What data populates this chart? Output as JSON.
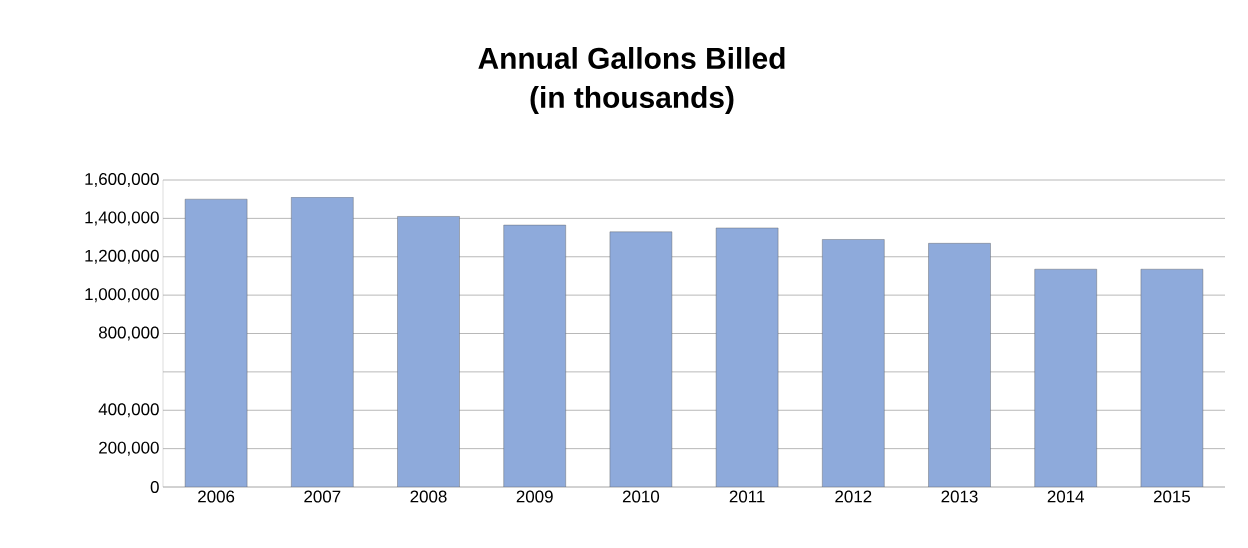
{
  "chart_data": {
    "type": "bar",
    "title": "Annual Gallons Billed",
    "subtitle": "(in thousands)",
    "categories": [
      "2006",
      "2007",
      "2008",
      "2009",
      "2010",
      "2011",
      "2012",
      "2013",
      "2014",
      "2015"
    ],
    "values": [
      1500000,
      1510000,
      1410000,
      1365000,
      1330000,
      1350000,
      1290000,
      1270000,
      1135000,
      1135000
    ],
    "color": "#8eaadb",
    "ylim": [
      0,
      1600000
    ],
    "yticks": [
      {
        "value": 0,
        "label": "0"
      },
      {
        "value": 200000,
        "label": "200,000"
      },
      {
        "value": 400000,
        "label": "400,000"
      },
      {
        "value": 600000,
        "label": null
      },
      {
        "value": 800000,
        "label": "800,000"
      },
      {
        "value": 1000000,
        "label": "1,000,000"
      },
      {
        "value": 1200000,
        "label": "1,200,000"
      },
      {
        "value": 1400000,
        "label": "1,400,000"
      },
      {
        "value": 1600000,
        "label": "1,600,000"
      }
    ],
    "grid": "y"
  }
}
